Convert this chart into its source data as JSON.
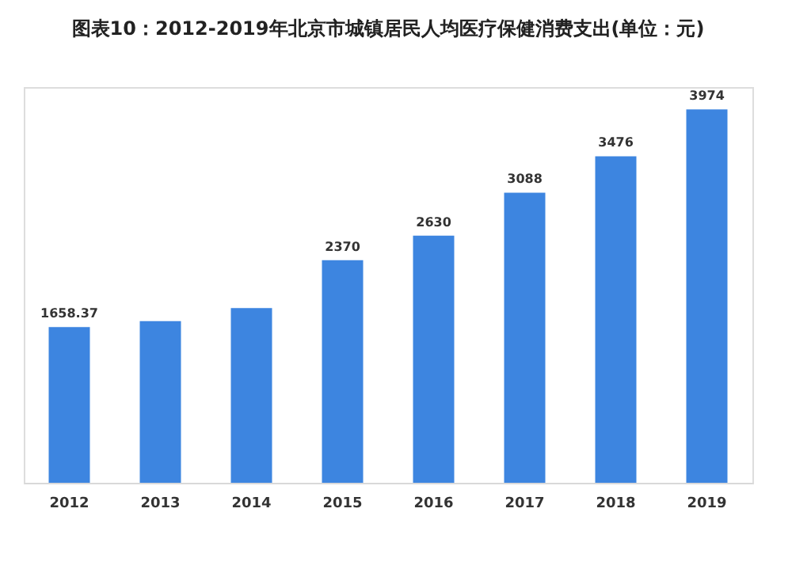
{
  "chart_data": {
    "type": "bar",
    "title": "图表10：2012-2019年北京市城镇居民人均医疗保健消费支出(单位：元)",
    "categories": [
      "2012",
      "2013",
      "2014",
      "2015",
      "2016",
      "2017",
      "2018",
      "2019"
    ],
    "values": [
      1658.37,
      1720,
      1860,
      2370,
      2630,
      3088,
      3476,
      3974
    ],
    "value_labels": [
      "1658.37",
      null,
      null,
      "2370",
      "2630",
      "3088",
      "3476",
      "3974"
    ],
    "color": "#3d85e0",
    "grid": false
  }
}
